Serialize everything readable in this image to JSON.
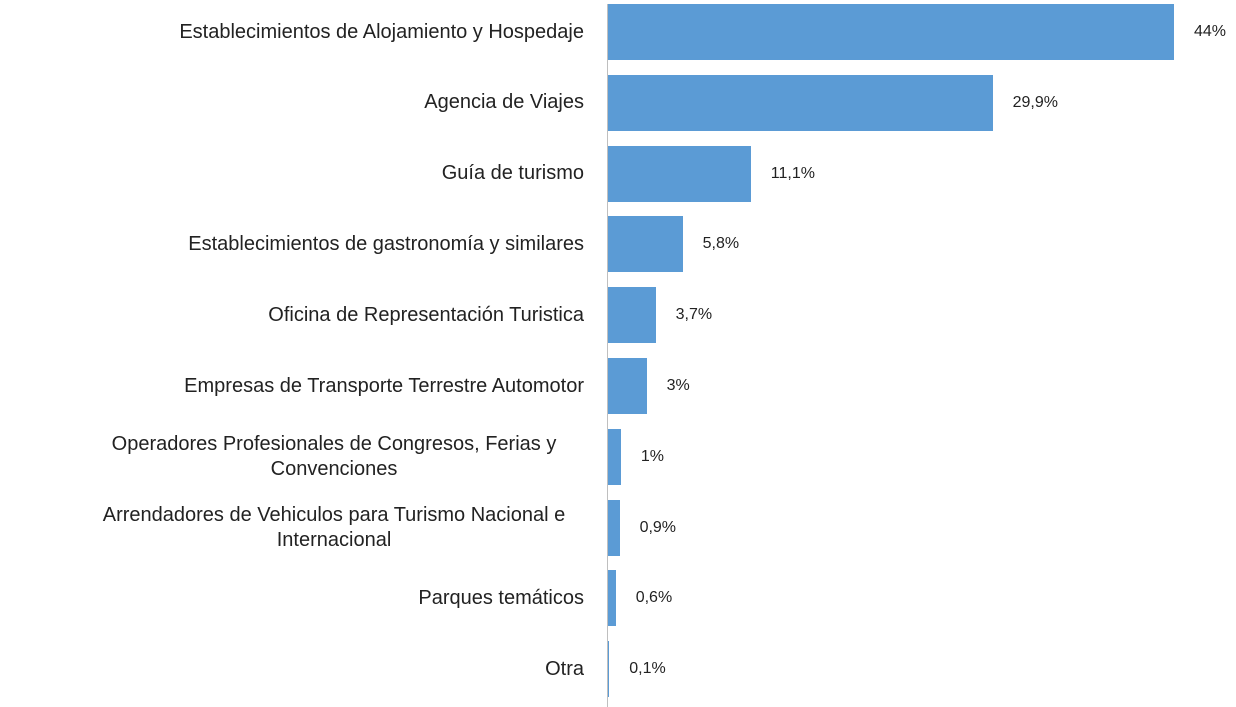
{
  "chart_data": {
    "type": "bar",
    "orientation": "horizontal",
    "categories": [
      "Establecimientos de Alojamiento y Hospedaje",
      "Agencia de Viajes",
      "Guía de turismo",
      "Establecimientos de gastronomía y similares",
      "Oficina de Representación Turistica",
      "Empresas de Transporte Terrestre Automotor",
      "Operadores Profesionales de Congresos, Ferias y Convenciones",
      "Arrendadores de Vehiculos para Turismo Nacional e Internacional",
      "Parques temáticos",
      "Otra"
    ],
    "values": [
      44,
      29.9,
      11.1,
      5.8,
      3.7,
      3,
      1,
      0.9,
      0.6,
      0.1
    ],
    "value_labels": [
      "44%",
      "29,9%",
      "11,1%",
      "5,8%",
      "3,7%",
      "3%",
      "1%",
      "0,9%",
      "0,6%",
      "0,1%"
    ],
    "color": "#5b9bd5"
  }
}
